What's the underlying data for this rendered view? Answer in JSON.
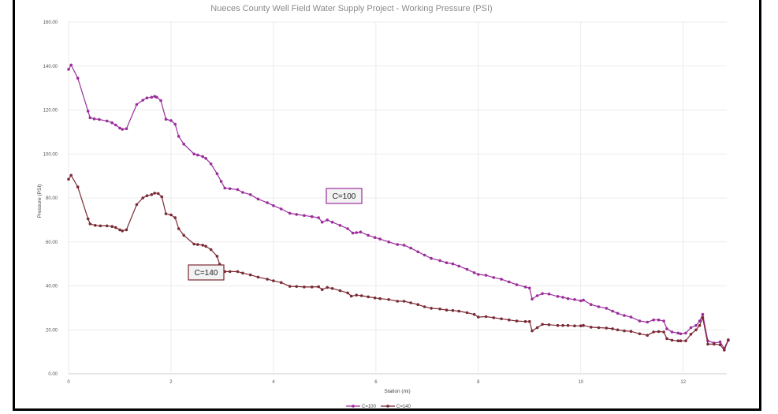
{
  "chart_data": {
    "type": "line",
    "title": "Nueces County Well Field Water Supply Project - Working Pressure (PSI)",
    "xlabel": "Station (mi)",
    "ylabel": "Pressure (PSI)",
    "xlim": [
      0,
      12.85
    ],
    "ylim": [
      0,
      160
    ],
    "xticks": [
      "0",
      "2",
      "4",
      "6",
      "8",
      "10",
      "12"
    ],
    "yticks": [
      "0.00",
      "20.00",
      "40.00",
      "60.00",
      "80.00",
      "100.00",
      "120.00",
      "140.00",
      "160.00"
    ],
    "grid": true,
    "legend_position": "bottom",
    "series": [
      {
        "name": "C=100",
        "color": "#9b2d9b",
        "label_box": "C=100",
        "points": [
          [
            0,
            138.5
          ],
          [
            0.05,
            140.5
          ],
          [
            0.18,
            134.5
          ],
          [
            0.38,
            119.5
          ],
          [
            0.42,
            116.5
          ],
          [
            0.5,
            116
          ],
          [
            0.6,
            115.7
          ],
          [
            0.75,
            115
          ],
          [
            0.85,
            114.2
          ],
          [
            0.92,
            113.2
          ],
          [
            1.0,
            111.8
          ],
          [
            1.05,
            111.2
          ],
          [
            1.13,
            111.5
          ],
          [
            1.33,
            122.5
          ],
          [
            1.45,
            124.5
          ],
          [
            1.53,
            125.5
          ],
          [
            1.62,
            125.8
          ],
          [
            1.68,
            126.2
          ],
          [
            1.72,
            125.8
          ],
          [
            1.8,
            124.3
          ],
          [
            1.9,
            115.8
          ],
          [
            2.0,
            115.2
          ],
          [
            2.08,
            113.5
          ],
          [
            2.15,
            108
          ],
          [
            2.25,
            104.5
          ],
          [
            2.45,
            100
          ],
          [
            2.52,
            99.5
          ],
          [
            2.62,
            98.8
          ],
          [
            2.68,
            98
          ],
          [
            2.78,
            95.5
          ],
          [
            2.9,
            91
          ],
          [
            2.98,
            87.5
          ],
          [
            3.05,
            84.5
          ],
          [
            3.15,
            84.2
          ],
          [
            3.3,
            83.8
          ],
          [
            3.4,
            82.5
          ],
          [
            3.55,
            81.5
          ],
          [
            3.7,
            79.5
          ],
          [
            3.88,
            77.8
          ],
          [
            4.0,
            76.5
          ],
          [
            4.15,
            75
          ],
          [
            4.32,
            73
          ],
          [
            4.45,
            72.5
          ],
          [
            4.6,
            72
          ],
          [
            4.75,
            71.5
          ],
          [
            4.88,
            71
          ],
          [
            4.95,
            69
          ],
          [
            5.05,
            70
          ],
          [
            5.15,
            69
          ],
          [
            5.3,
            67.5
          ],
          [
            5.45,
            66
          ],
          [
            5.55,
            64
          ],
          [
            5.62,
            64.2
          ],
          [
            5.7,
            64.5
          ],
          [
            5.85,
            63
          ],
          [
            5.98,
            62
          ],
          [
            6.08,
            61.3
          ],
          [
            6.25,
            60
          ],
          [
            6.42,
            58.8
          ],
          [
            6.55,
            58.5
          ],
          [
            6.68,
            57.2
          ],
          [
            6.82,
            55.5
          ],
          [
            6.95,
            54
          ],
          [
            7.08,
            52.5
          ],
          [
            7.25,
            51.5
          ],
          [
            7.38,
            50.5
          ],
          [
            7.5,
            50
          ],
          [
            7.62,
            49
          ],
          [
            7.78,
            47.5
          ],
          [
            7.92,
            46
          ],
          [
            8.0,
            45.2
          ],
          [
            8.15,
            44.8
          ],
          [
            8.3,
            43.8
          ],
          [
            8.45,
            43
          ],
          [
            8.6,
            41.8
          ],
          [
            8.75,
            40.5
          ],
          [
            8.92,
            39.5
          ],
          [
            9.0,
            39
          ],
          [
            9.05,
            34
          ],
          [
            9.15,
            35.5
          ],
          [
            9.25,
            36.5
          ],
          [
            9.38,
            36.3
          ],
          [
            9.55,
            35.2
          ],
          [
            9.65,
            34.8
          ],
          [
            9.75,
            34.2
          ],
          [
            9.88,
            33.8
          ],
          [
            10.0,
            33.2
          ],
          [
            10.05,
            33.5
          ],
          [
            10.2,
            31.5
          ],
          [
            10.35,
            30.5
          ],
          [
            10.5,
            29.8
          ],
          [
            10.62,
            28.5
          ],
          [
            10.72,
            27.5
          ],
          [
            10.85,
            26.5
          ],
          [
            10.98,
            25.8
          ],
          [
            11.15,
            24
          ],
          [
            11.3,
            23.5
          ],
          [
            11.42,
            24.5
          ],
          [
            11.52,
            24.5
          ],
          [
            11.62,
            24
          ],
          [
            11.68,
            20.5
          ],
          [
            11.78,
            19
          ],
          [
            11.9,
            18.5
          ],
          [
            11.95,
            18.2
          ],
          [
            12.05,
            18.5
          ],
          [
            12.15,
            21
          ],
          [
            12.25,
            22
          ],
          [
            12.32,
            24
          ],
          [
            12.38,
            27
          ],
          [
            12.48,
            15
          ],
          [
            12.6,
            14
          ],
          [
            12.72,
            14.5
          ],
          [
            12.8,
            11.5
          ],
          [
            12.88,
            15.5
          ]
        ]
      },
      {
        "name": "C=140",
        "color": "#7a2a35",
        "label_box": "C=140",
        "points": [
          [
            0,
            88.5
          ],
          [
            0.05,
            90.3
          ],
          [
            0.18,
            85
          ],
          [
            0.38,
            70.5
          ],
          [
            0.42,
            68.2
          ],
          [
            0.52,
            67.5
          ],
          [
            0.62,
            67.3
          ],
          [
            0.75,
            67.3
          ],
          [
            0.85,
            67
          ],
          [
            0.92,
            66.5
          ],
          [
            1.0,
            65.5
          ],
          [
            1.05,
            65
          ],
          [
            1.13,
            65.5
          ],
          [
            1.33,
            77
          ],
          [
            1.45,
            80
          ],
          [
            1.53,
            81
          ],
          [
            1.62,
            81.5
          ],
          [
            1.68,
            82.2
          ],
          [
            1.75,
            82
          ],
          [
            1.82,
            80.5
          ],
          [
            1.9,
            72.8
          ],
          [
            2.0,
            72.3
          ],
          [
            2.08,
            71
          ],
          [
            2.15,
            66
          ],
          [
            2.25,
            63
          ],
          [
            2.45,
            59
          ],
          [
            2.52,
            58.8
          ],
          [
            2.62,
            58.5
          ],
          [
            2.68,
            58
          ],
          [
            2.78,
            56.5
          ],
          [
            2.9,
            53.5
          ],
          [
            2.95,
            49.8
          ],
          [
            3.05,
            46.5
          ],
          [
            3.15,
            46.5
          ],
          [
            3.3,
            46.5
          ],
          [
            3.4,
            45.8
          ],
          [
            3.55,
            45
          ],
          [
            3.7,
            44
          ],
          [
            3.88,
            43
          ],
          [
            4.0,
            42.3
          ],
          [
            4.15,
            41.5
          ],
          [
            4.32,
            39.8
          ],
          [
            4.45,
            39.7
          ],
          [
            4.6,
            39.5
          ],
          [
            4.75,
            39.5
          ],
          [
            4.88,
            39.6
          ],
          [
            4.95,
            38.3
          ],
          [
            5.05,
            39.3
          ],
          [
            5.15,
            38.8
          ],
          [
            5.3,
            37.8
          ],
          [
            5.45,
            36.8
          ],
          [
            5.52,
            35.3
          ],
          [
            5.62,
            35.8
          ],
          [
            5.72,
            35.5
          ],
          [
            5.85,
            35
          ],
          [
            5.98,
            34.5
          ],
          [
            6.08,
            34.2
          ],
          [
            6.25,
            33.8
          ],
          [
            6.42,
            33
          ],
          [
            6.55,
            33
          ],
          [
            6.68,
            32.3
          ],
          [
            6.82,
            31.5
          ],
          [
            6.95,
            30.5
          ],
          [
            7.08,
            29.8
          ],
          [
            7.25,
            29.5
          ],
          [
            7.38,
            29
          ],
          [
            7.5,
            28.8
          ],
          [
            7.62,
            28.5
          ],
          [
            7.78,
            27.8
          ],
          [
            7.92,
            27
          ],
          [
            8.0,
            25.8
          ],
          [
            8.15,
            26
          ],
          [
            8.3,
            25.5
          ],
          [
            8.45,
            25
          ],
          [
            8.6,
            24.5
          ],
          [
            8.75,
            24
          ],
          [
            8.92,
            23.8
          ],
          [
            9.0,
            23.8
          ],
          [
            9.05,
            19.5
          ],
          [
            9.15,
            21
          ],
          [
            9.25,
            22.5
          ],
          [
            9.38,
            22.3
          ],
          [
            9.55,
            22
          ],
          [
            9.65,
            22
          ],
          [
            9.75,
            22
          ],
          [
            9.88,
            21.8
          ],
          [
            10.0,
            21.8
          ],
          [
            10.05,
            22
          ],
          [
            10.2,
            21.2
          ],
          [
            10.35,
            21
          ],
          [
            10.5,
            20.8
          ],
          [
            10.62,
            20.5
          ],
          [
            10.72,
            20
          ],
          [
            10.85,
            19.5
          ],
          [
            10.98,
            19.3
          ],
          [
            11.15,
            18.2
          ],
          [
            11.3,
            17.5
          ],
          [
            11.42,
            19
          ],
          [
            11.52,
            19.2
          ],
          [
            11.62,
            19
          ],
          [
            11.68,
            16
          ],
          [
            11.78,
            15.3
          ],
          [
            11.9,
            15
          ],
          [
            11.95,
            15
          ],
          [
            12.05,
            15
          ],
          [
            12.15,
            18
          ],
          [
            12.25,
            20
          ],
          [
            12.32,
            22
          ],
          [
            12.38,
            25.5
          ],
          [
            12.48,
            13.5
          ],
          [
            12.6,
            13.5
          ],
          [
            12.72,
            13.2
          ],
          [
            12.8,
            10.8
          ],
          [
            12.88,
            15.2
          ]
        ]
      }
    ]
  }
}
